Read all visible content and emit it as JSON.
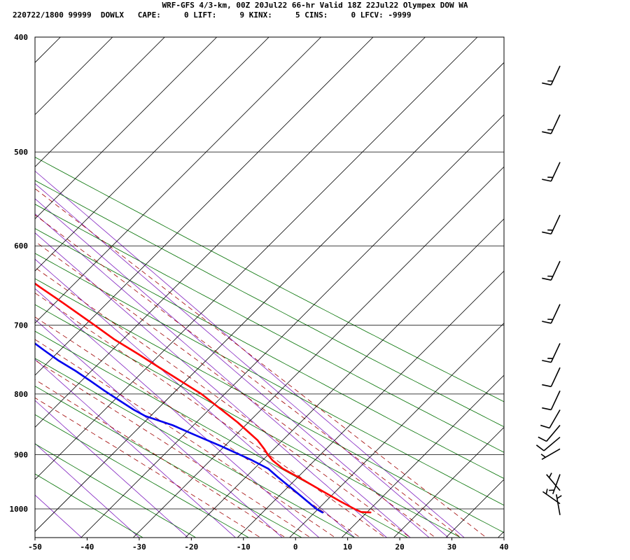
{
  "header": {
    "line1": "WRF-GFS 4/3-km, 00Z 20Jul22 66-hr Valid 18Z 22Jul22 Olympex DOW WA",
    "line2": "220722/1800 99999  DOWLX   CAPE:     0 LIFT:     9 KINX:     5 CINS:     0 LFCV: -9999"
  },
  "chart_data": {
    "type": "line",
    "subtype": "skew-t log-p sounding",
    "title": "WRF-GFS 4/3-km, 00Z 20Jul22 66-hr Valid 18Z 22Jul22 Olympex DOW WA",
    "subtitle": "220722/1800 99999  DOWLX   CAPE:     0 LIFT:     9 KINX:     5 CINS:     0 LFCV: -9999",
    "xlabel": "",
    "ylabel": "",
    "x_unit": "degC",
    "y_unit": "hPa",
    "xlim": [
      -50,
      40
    ],
    "ylim": [
      1045,
      400
    ],
    "y_scale": "log",
    "x_ticks": [
      -50,
      -40,
      -30,
      -20,
      -10,
      0,
      10,
      20,
      30,
      40
    ],
    "y_ticks": [
      400,
      500,
      600,
      700,
      800,
      900,
      1000
    ],
    "grid": true,
    "series": [
      {
        "color": "#ff0000",
        "points": [
          [
            19.2,
            1007
          ],
          [
            17.5,
            1006
          ],
          [
            16.8,
            1000
          ],
          [
            15.5,
            985
          ],
          [
            14.0,
            965
          ],
          [
            12.5,
            945
          ],
          [
            10.8,
            925
          ],
          [
            10.4,
            910
          ],
          [
            10.6,
            900
          ],
          [
            11.0,
            890
          ],
          [
            11.4,
            875
          ],
          [
            11.2,
            860
          ],
          [
            11.0,
            845
          ],
          [
            10.0,
            815
          ],
          [
            9.5,
            800
          ],
          [
            8.0,
            780
          ],
          [
            6.5,
            760
          ],
          [
            5.0,
            740
          ],
          [
            3.3,
            720
          ],
          [
            2.2,
            700
          ],
          [
            0.4,
            670
          ],
          [
            -1.0,
            650
          ],
          [
            -2.2,
            630
          ],
          [
            -3.0,
            615
          ],
          [
            -4.4,
            600
          ],
          [
            -6.0,
            585
          ],
          [
            -8.5,
            560
          ],
          [
            -10.8,
            540
          ],
          [
            -12.0,
            525
          ],
          [
            -14.0,
            505
          ],
          [
            -15.5,
            490
          ],
          [
            -16.5,
            480
          ],
          [
            -18.5,
            460
          ],
          [
            -20.5,
            440
          ],
          [
            -22.0,
            425
          ],
          [
            -22.3,
            420
          ]
        ]
      },
      {
        "color": "#0000ee",
        "points": [
          [
            10.0,
            1007
          ],
          [
            9.5,
            1000
          ],
          [
            9.2,
            985
          ],
          [
            8.8,
            965
          ],
          [
            8.2,
            940
          ],
          [
            8.0,
            925
          ],
          [
            6.5,
            910
          ],
          [
            3.2,
            885
          ],
          [
            0.2,
            865
          ],
          [
            -2.0,
            850
          ],
          [
            -5.5,
            835
          ],
          [
            -6.5,
            825
          ],
          [
            -7.5,
            810
          ],
          [
            -8.5,
            795
          ],
          [
            -9.3,
            780
          ],
          [
            -10.2,
            765
          ],
          [
            -11.5,
            750
          ],
          [
            -12.3,
            735
          ],
          [
            -13.0,
            720
          ],
          [
            -13.5,
            700
          ],
          [
            -14.3,
            680
          ],
          [
            -15.5,
            660
          ],
          [
            -17.0,
            645
          ],
          [
            -18.8,
            625
          ],
          [
            -20.8,
            605
          ],
          [
            -22.2,
            590
          ],
          [
            -24.2,
            575
          ],
          [
            -26.3,
            555
          ],
          [
            -28.0,
            540
          ],
          [
            -30.2,
            520
          ],
          [
            -32.2,
            500
          ],
          [
            -34.8,
            478
          ],
          [
            -36.0,
            465
          ],
          [
            -37.5,
            445
          ],
          [
            -38.8,
            425
          ],
          [
            -39.2,
            420
          ]
        ]
      }
    ],
    "wind_barbs": [
      {
        "p": 423,
        "dir": 205,
        "spd": 15
      },
      {
        "p": 465,
        "dir": 205,
        "spd": 15
      },
      {
        "p": 510,
        "dir": 205,
        "spd": 15
      },
      {
        "p": 565,
        "dir": 205,
        "spd": 15
      },
      {
        "p": 618,
        "dir": 205,
        "spd": 15
      },
      {
        "p": 672,
        "dir": 205,
        "spd": 15
      },
      {
        "p": 725,
        "dir": 205,
        "spd": 15
      },
      {
        "p": 760,
        "dir": 205,
        "spd": 10
      },
      {
        "p": 795,
        "dir": 205,
        "spd": 10
      },
      {
        "p": 825,
        "dir": 210,
        "spd": 10
      },
      {
        "p": 850,
        "dir": 220,
        "spd": 10
      },
      {
        "p": 870,
        "dir": 230,
        "spd": 10
      },
      {
        "p": 890,
        "dir": 240,
        "spd": 5
      },
      {
        "p": 935,
        "dir": 200,
        "spd": 5
      },
      {
        "p": 965,
        "dir": 320,
        "spd": 5
      },
      {
        "p": 990,
        "dir": 305,
        "spd": 5
      },
      {
        "p": 1012,
        "dir": 350,
        "spd": 5
      }
    ],
    "background_lines": {
      "isotherm_color": "#000000",
      "dry_adiabat_color": "#007000",
      "moist_adiabat_color": "#a00000",
      "mixing_ratio_color": "#8020c0",
      "dry_adiabat_theta_K": [
        240,
        250,
        260,
        270,
        280,
        290,
        300,
        310,
        320,
        330,
        340,
        350,
        360
      ],
      "moist_adiabat_theta_w_C": [
        -10,
        -5,
        0,
        5,
        10,
        15,
        20,
        25,
        30,
        35
      ],
      "mixing_ratio_g_per_kg": [
        0.1,
        0.3,
        0.7,
        1.5,
        3,
        5,
        8,
        12,
        16,
        20,
        25,
        30
      ]
    }
  }
}
